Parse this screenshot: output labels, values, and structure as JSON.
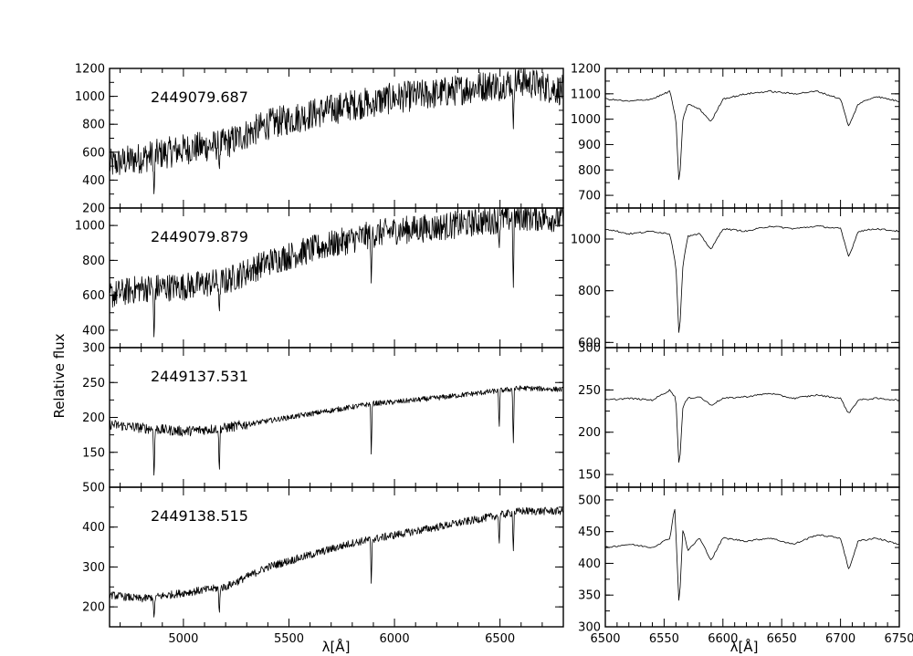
{
  "figure": {
    "ylabel": "Relative flux",
    "xlabel_left": "λ[Å]",
    "xlabel_right": "λ[Å]"
  },
  "chart_data": [
    {
      "type": "line",
      "panel": "full-spectrum",
      "label": "2449079.687",
      "xlim": [
        4650,
        6800
      ],
      "ylim": [
        200,
        1200
      ],
      "yticks": [
        200,
        400,
        600,
        800,
        1000,
        1200
      ],
      "x": [
        4650,
        4800,
        5000,
        5200,
        5400,
        5600,
        5800,
        5900,
        6000,
        6200,
        6400,
        6600,
        6800
      ],
      "values": [
        510,
        560,
        620,
        660,
        800,
        870,
        940,
        960,
        990,
        1020,
        1070,
        1110,
        1040
      ],
      "absorption_lines": [
        {
          "x": 4861,
          "value": 250
        },
        {
          "x": 5170,
          "value": 450
        },
        {
          "x": 5890,
          "value": 870
        },
        {
          "x": 6496,
          "value": 950
        },
        {
          "x": 6563,
          "value": 730
        }
      ]
    },
    {
      "type": "line",
      "panel": "full-spectrum",
      "label": "2449079.879",
      "xlim": [
        4650,
        6800
      ],
      "ylim": [
        300,
        1100
      ],
      "yticks": [
        400,
        600,
        800,
        1000
      ],
      "x": [
        4650,
        4800,
        5000,
        5200,
        5400,
        5600,
        5800,
        5900,
        6000,
        6200,
        6400,
        6600,
        6800
      ],
      "values": [
        600,
        640,
        650,
        680,
        790,
        860,
        920,
        950,
        970,
        990,
        1020,
        1050,
        1040
      ],
      "absorption_lines": [
        {
          "x": 4861,
          "value": 310
        },
        {
          "x": 5170,
          "value": 480
        },
        {
          "x": 5890,
          "value": 660
        },
        {
          "x": 6496,
          "value": 850
        },
        {
          "x": 6563,
          "value": 600
        }
      ]
    },
    {
      "type": "line",
      "panel": "full-spectrum",
      "label": "2449137.531",
      "xlim": [
        4650,
        6800
      ],
      "ylim": [
        100,
        300
      ],
      "yticks": [
        150,
        200,
        250,
        300
      ],
      "x": [
        4650,
        4800,
        5000,
        5200,
        5400,
        5600,
        5800,
        5900,
        6000,
        6200,
        6400,
        6600,
        6800
      ],
      "values": [
        190,
        185,
        180,
        185,
        195,
        205,
        215,
        220,
        222,
        228,
        235,
        242,
        240
      ],
      "absorption_lines": [
        {
          "x": 4861,
          "value": 105
        },
        {
          "x": 5170,
          "value": 115
        },
        {
          "x": 5890,
          "value": 145
        },
        {
          "x": 6496,
          "value": 180
        },
        {
          "x": 6563,
          "value": 155
        }
      ]
    },
    {
      "type": "line",
      "panel": "full-spectrum",
      "label": "2449138.515",
      "xlim": [
        4650,
        6800
      ],
      "ylim": [
        150,
        500
      ],
      "yticks": [
        200,
        300,
        400,
        500
      ],
      "x": [
        4650,
        4800,
        5000,
        5200,
        5400,
        5600,
        5800,
        5900,
        6000,
        6200,
        6400,
        6600,
        6800
      ],
      "values": [
        230,
        220,
        235,
        250,
        300,
        330,
        360,
        370,
        380,
        400,
        420,
        440,
        440
      ],
      "absorption_lines": [
        {
          "x": 4861,
          "value": 165
        },
        {
          "x": 5170,
          "value": 175
        },
        {
          "x": 5890,
          "value": 255
        },
        {
          "x": 6496,
          "value": 350
        },
        {
          "x": 6563,
          "value": 330
        }
      ]
    },
    {
      "type": "line",
      "panel": "h-alpha-zoom",
      "xlim": [
        6500,
        6750
      ],
      "ylim": [
        650,
        1200
      ],
      "yticks": [
        700,
        800,
        900,
        1000,
        1100,
        1200
      ],
      "x": [
        6500,
        6520,
        6540,
        6555,
        6560,
        6562.8,
        6566,
        6570,
        6580,
        6590,
        6600,
        6620,
        6640,
        6660,
        6680,
        6700,
        6707,
        6715,
        6730,
        6750
      ],
      "values": [
        1080,
        1070,
        1080,
        1110,
        1000,
        730,
        1000,
        1060,
        1040,
        990,
        1080,
        1100,
        1110,
        1100,
        1110,
        1080,
        970,
        1060,
        1090,
        1070
      ]
    },
    {
      "type": "line",
      "panel": "h-alpha-zoom",
      "xlim": [
        6500,
        6750
      ],
      "ylim": [
        580,
        1120
      ],
      "yticks": [
        600,
        800,
        1000
      ],
      "x": [
        6500,
        6520,
        6540,
        6555,
        6560,
        6562.8,
        6566,
        6570,
        6580,
        6590,
        6600,
        6620,
        6640,
        6660,
        6680,
        6700,
        6707,
        6715,
        6730,
        6750
      ],
      "values": [
        1040,
        1020,
        1030,
        1020,
        900,
        610,
        900,
        1010,
        1020,
        960,
        1040,
        1030,
        1050,
        1040,
        1050,
        1040,
        930,
        1030,
        1040,
        1030
      ]
    },
    {
      "type": "line",
      "panel": "h-alpha-zoom",
      "xlim": [
        6500,
        6750
      ],
      "ylim": [
        135,
        300
      ],
      "yticks": [
        150,
        200,
        250,
        300
      ],
      "x": [
        6500,
        6520,
        6540,
        6555,
        6560,
        6562.8,
        6566,
        6570,
        6580,
        6590,
        6600,
        6620,
        6640,
        6660,
        6680,
        6700,
        6707,
        6715,
        6730,
        6750
      ],
      "values": [
        238,
        240,
        238,
        250,
        240,
        155,
        230,
        240,
        242,
        232,
        240,
        242,
        246,
        240,
        244,
        240,
        222,
        238,
        240,
        238
      ]
    },
    {
      "type": "line",
      "panel": "h-alpha-zoom",
      "xlim": [
        6500,
        6750
      ],
      "ylim": [
        300,
        520
      ],
      "yticks": [
        300,
        350,
        400,
        450,
        500
      ],
      "xticks": [
        6500,
        6550,
        6600,
        6650,
        6700,
        6750
      ],
      "x": [
        6500,
        6520,
        6540,
        6555,
        6559,
        6562.8,
        6566,
        6570,
        6580,
        6590,
        6600,
        6620,
        6640,
        6660,
        6680,
        6700,
        6707,
        6715,
        6730,
        6750
      ],
      "values": [
        425,
        430,
        425,
        440,
        490,
        330,
        455,
        420,
        440,
        405,
        440,
        435,
        440,
        430,
        445,
        440,
        390,
        435,
        440,
        430
      ]
    }
  ],
  "xaxis_left": {
    "ticks": [
      5000,
      5500,
      6000,
      6500
    ]
  },
  "xaxis_right": {
    "ticks": [
      6500,
      6550,
      6600,
      6650,
      6700,
      6750
    ]
  }
}
